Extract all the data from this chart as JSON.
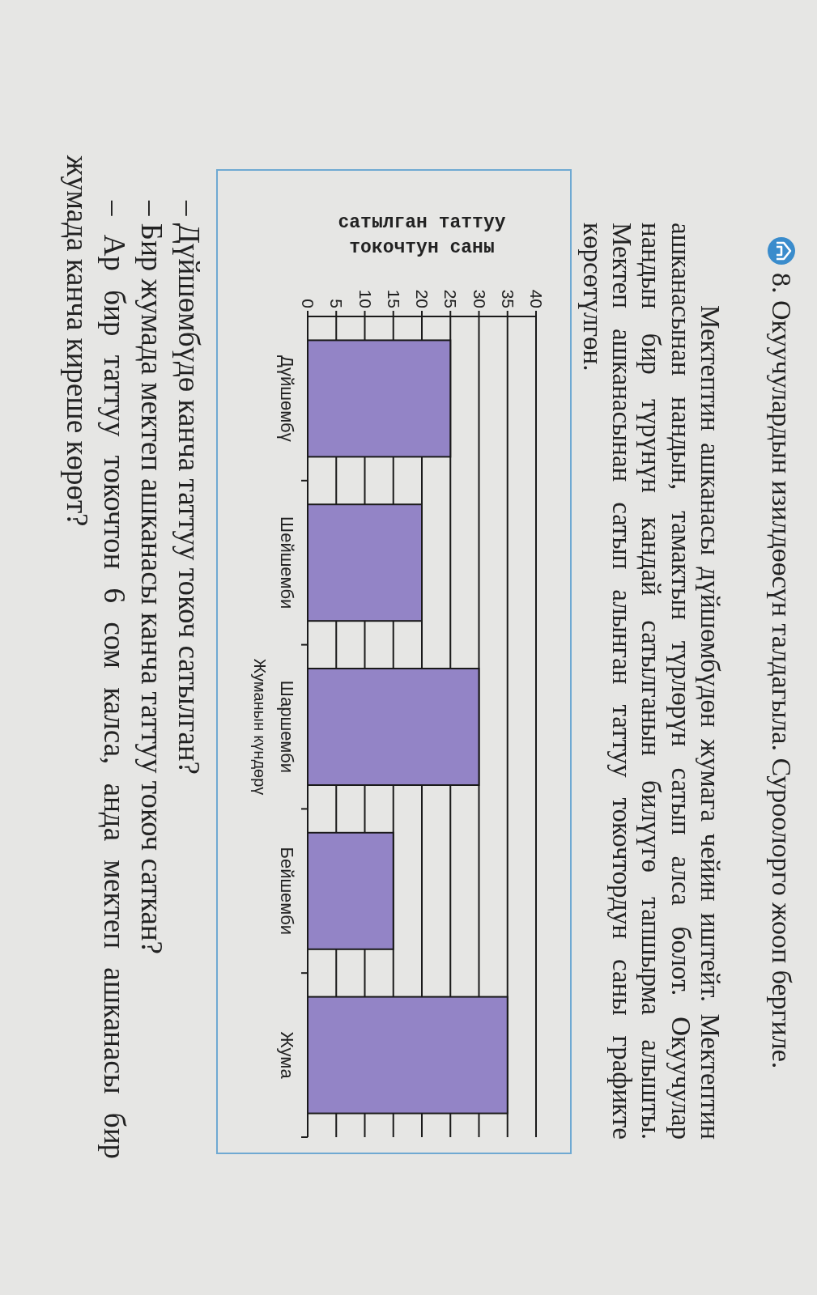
{
  "chart_data": {
    "type": "bar",
    "orientation": "horizontal",
    "title": "8. Окуучулардын изилдөөсүн талдагыла. Суроолорго жооп бергиле.",
    "subtitle": "Мектептин ашканасы дүйшөмбүдөн жумага чейин иштейт. Мектептин\nашканасынан нандын, тамактын түрлөрүн сатып алса болот. Окуучулар\nнандын бир түрүнүн кандай сатылганын билүүгө тапшырма алышты.\nМектеп ашканасынан сатып алынган таттуу токочтордун саны графикте\nкөрсөтүлгөн.",
    "xlabel": "сатылган таттуу\nтокочтун саны",
    "ylabel": "Жуманын күндөрү",
    "annotations": [
      "– Дүйшөмбүдө канча таттуу токоч сатылган?",
      "– Бир жумада мектеп ашканасы канча таттуу токоч саткан?",
      "– Ар бир таттуу токочтон 6 сом калса, анда мектеп ашканасы бир\nжумада канча киреше көрөт?"
    ],
    "categories": [
      "Дүйшөмбү",
      "Шейшемби",
      "Шаршемби",
      "Бейшемби",
      "Жума"
    ],
    "values": [
      25,
      20,
      30,
      15,
      35
    ],
    "color": "#9384c6",
    "xlim": [
      0,
      40
    ],
    "xticks": [
      0,
      5,
      10,
      15,
      20,
      25,
      30,
      35,
      40
    ],
    "grid": "x"
  }
}
